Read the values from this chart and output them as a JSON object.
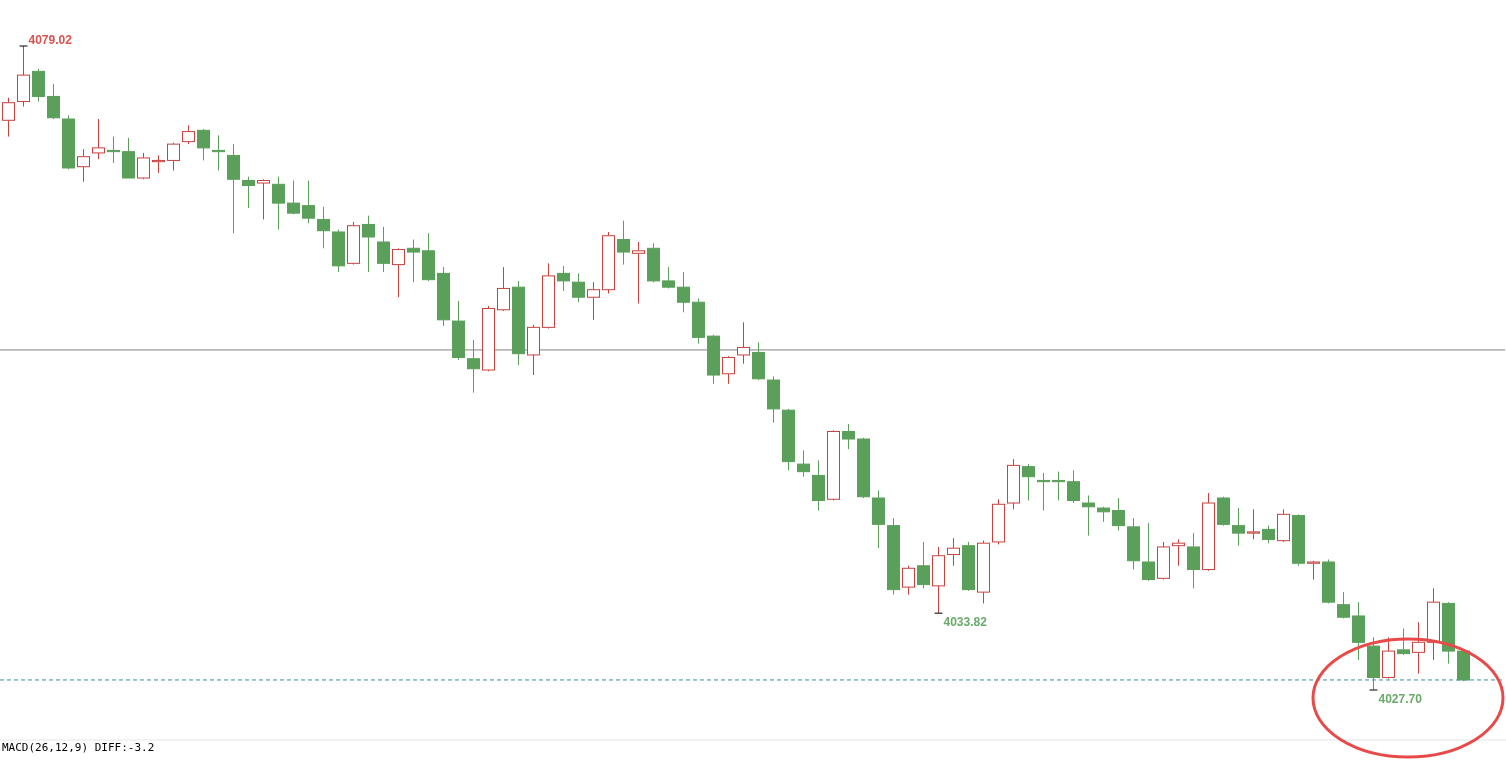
{
  "chart_data": {
    "type": "candlestick",
    "categories": [
      null,
      null,
      null,
      null,
      null,
      null,
      null,
      null,
      null,
      null,
      null,
      null,
      null,
      null,
      null,
      null,
      null,
      null,
      null,
      null,
      null,
      null,
      null,
      null,
      null,
      null,
      null,
      null,
      null,
      null,
      null,
      null,
      null,
      null,
      null,
      null,
      null,
      null,
      null,
      null,
      null,
      null,
      null,
      null,
      null,
      null,
      null,
      null,
      null,
      null,
      null,
      null,
      null,
      null,
      null,
      null,
      null,
      null,
      null,
      null,
      null,
      null,
      null,
      null,
      null,
      null,
      null,
      null,
      null,
      null,
      null,
      null,
      null,
      null,
      null,
      null,
      null,
      null,
      null,
      null,
      null,
      null,
      null,
      null,
      null,
      null,
      null,
      null,
      null,
      null,
      null,
      null,
      null,
      null,
      null,
      null,
      null,
      null
    ],
    "ohlc": [
      [
        4073.1,
        4074.9,
        4071.8,
        4074.5
      ],
      [
        4074.6,
        4079.02,
        4074.2,
        4076.7
      ],
      [
        4077.0,
        4077.2,
        4074.6,
        4075.0
      ],
      [
        4075.0,
        4076.0,
        4073.2,
        4073.3
      ],
      [
        4073.2,
        4073.5,
        4069.2,
        4069.3
      ],
      [
        4069.4,
        4070.8,
        4068.2,
        4070.2
      ],
      [
        4070.5,
        4073.2,
        4070.0,
        4070.9
      ],
      [
        4070.7,
        4071.8,
        4069.7,
        4070.6
      ],
      [
        4070.6,
        4071.7,
        4068.5,
        4068.5
      ],
      [
        4068.5,
        4070.5,
        4068.4,
        4070.1
      ],
      [
        4069.8,
        4070.3,
        4068.9,
        4069.9
      ],
      [
        4069.9,
        4071.3,
        4069.1,
        4071.2
      ],
      [
        4071.4,
        4072.7,
        4071.2,
        4072.2
      ],
      [
        4072.3,
        4072.4,
        4069.9,
        4070.9
      ],
      [
        4070.7,
        4071.9,
        4069.1,
        4070.6
      ],
      [
        4070.3,
        4071.2,
        4064.1,
        4068.4
      ],
      [
        4068.3,
        4068.6,
        4066.1,
        4067.9
      ],
      [
        4068.1,
        4068.4,
        4065.2,
        4068.3
      ],
      [
        4068.0,
        4068.6,
        4064.4,
        4066.5
      ],
      [
        4066.5,
        4068.3,
        4065.6,
        4065.7
      ],
      [
        4066.3,
        4068.3,
        4064.9,
        4065.3
      ],
      [
        4065.2,
        4066.2,
        4062.9,
        4064.3
      ],
      [
        4064.2,
        4064.4,
        4061.0,
        4061.5
      ],
      [
        4061.7,
        4065.0,
        4061.6,
        4064.7
      ],
      [
        4064.8,
        4065.5,
        4061.0,
        4063.8
      ],
      [
        4063.4,
        4064.6,
        4061.0,
        4061.7
      ],
      [
        4061.6,
        4062.9,
        4059.0,
        4062.8
      ],
      [
        4062.9,
        4063.6,
        4060.2,
        4062.6
      ],
      [
        4062.7,
        4064.1,
        4060.3,
        4060.4
      ],
      [
        4060.9,
        4061.4,
        4056.7,
        4057.2
      ],
      [
        4057.1,
        4058.7,
        4054.0,
        4054.2
      ],
      [
        4054.1,
        4055.6,
        4051.4,
        4053.3
      ],
      [
        4053.2,
        4058.3,
        4053.1,
        4058.1
      ],
      [
        4058.0,
        4061.4,
        4057.9,
        4059.7
      ],
      [
        4059.8,
        4060.3,
        4053.6,
        4054.5
      ],
      [
        4054.4,
        4056.8,
        4052.8,
        4056.6
      ],
      [
        4056.6,
        4061.7,
        4056.5,
        4060.7
      ],
      [
        4060.9,
        4061.5,
        4059.5,
        4060.3
      ],
      [
        4060.2,
        4060.9,
        4058.6,
        4059.0
      ],
      [
        4059.0,
        4060.2,
        4057.2,
        4059.6
      ],
      [
        4059.6,
        4064.2,
        4059.3,
        4063.9
      ],
      [
        4063.6,
        4065.1,
        4061.6,
        4062.6
      ],
      [
        4062.5,
        4063.4,
        4058.5,
        4062.7
      ],
      [
        4062.9,
        4063.3,
        4060.2,
        4060.3
      ],
      [
        4060.3,
        4061.4,
        4059.7,
        4059.8
      ],
      [
        4059.8,
        4061.0,
        4057.8,
        4058.6
      ],
      [
        4058.6,
        4058.9,
        4055.3,
        4055.8
      ],
      [
        4055.9,
        4056.0,
        4052.1,
        4052.8
      ],
      [
        4052.9,
        4054.3,
        4052.1,
        4054.2
      ],
      [
        4054.4,
        4057.0,
        4053.7,
        4055.0
      ],
      [
        4054.6,
        4055.4,
        4052.4,
        4052.5
      ],
      [
        4052.4,
        4052.7,
        4049.0,
        4050.1
      ],
      [
        4050.0,
        4050.1,
        4045.2,
        4045.9
      ],
      [
        4045.7,
        4046.8,
        4044.7,
        4045.1
      ],
      [
        4044.8,
        4046.0,
        4042.0,
        4042.8
      ],
      [
        4042.9,
        4048.4,
        4042.8,
        4048.3
      ],
      [
        4048.3,
        4048.9,
        4046.9,
        4047.7
      ],
      [
        4047.7,
        4047.8,
        4043.0,
        4043.1
      ],
      [
        4043.0,
        4043.6,
        4039.0,
        4040.9
      ],
      [
        4040.8,
        4041.4,
        4035.3,
        4035.7
      ],
      [
        4035.9,
        4037.6,
        4035.3,
        4037.4
      ],
      [
        4037.6,
        4039.5,
        4035.8,
        4036.1
      ],
      [
        4036.0,
        4039.1,
        4033.82,
        4038.4
      ],
      [
        4038.5,
        4039.8,
        4037.6,
        4039.0
      ],
      [
        4039.2,
        4039.5,
        4035.6,
        4035.7
      ],
      [
        4035.5,
        4039.6,
        4034.6,
        4039.4
      ],
      [
        4039.5,
        4042.9,
        4039.3,
        4042.5
      ],
      [
        4042.6,
        4046.1,
        4042.1,
        4045.6
      ],
      [
        4045.5,
        4045.7,
        4042.8,
        4044.7
      ],
      [
        4044.4,
        4045.0,
        4042.0,
        4044.3
      ],
      [
        4044.4,
        4045.1,
        4042.8,
        4044.3
      ],
      [
        4044.3,
        4045.2,
        4042.6,
        4042.8
      ],
      [
        4042.6,
        4043.2,
        4040.0,
        4042.3
      ],
      [
        4042.2,
        4042.3,
        4041.1,
        4041.9
      ],
      [
        4042.0,
        4043.0,
        4040.4,
        4040.8
      ],
      [
        4040.7,
        4041.4,
        4037.3,
        4038.0
      ],
      [
        4037.9,
        4041.0,
        4036.4,
        4036.5
      ],
      [
        4036.6,
        4039.5,
        4036.5,
        4039.1
      ],
      [
        4039.2,
        4039.7,
        4037.6,
        4039.4
      ],
      [
        4039.1,
        4040.2,
        4035.8,
        4037.3
      ],
      [
        4037.3,
        4043.4,
        4037.2,
        4042.6
      ],
      [
        4043.0,
        4043.1,
        4040.8,
        4040.9
      ],
      [
        4040.8,
        4042.2,
        4039.2,
        4040.2
      ],
      [
        4040.2,
        4042.1,
        4039.7,
        4040.3
      ],
      [
        4040.5,
        4040.8,
        4039.4,
        4039.7
      ],
      [
        4039.6,
        4042.1,
        4039.5,
        4041.7
      ],
      [
        4041.6,
        4041.7,
        4037.6,
        4037.8
      ],
      [
        4037.8,
        4038.0,
        4036.5,
        4037.9
      ],
      [
        4037.9,
        4038.1,
        4034.6,
        4034.7
      ],
      [
        4034.5,
        4035.5,
        4033.4,
        4033.5
      ],
      [
        4033.6,
        4034.7,
        4030.1,
        4031.5
      ],
      [
        4031.2,
        4031.9,
        4027.7,
        4028.7
      ],
      [
        4028.7,
        4031.9,
        4028.6,
        4030.8
      ],
      [
        4030.9,
        4032.6,
        4030.5,
        4030.6
      ],
      [
        4030.7,
        4033.1,
        4029.0,
        4031.5
      ],
      [
        4031.5,
        4035.8,
        4030.1,
        4034.7
      ],
      [
        4034.6,
        4034.7,
        4029.8,
        4030.8
      ],
      [
        4030.8,
        4030.9,
        4028.4,
        4028.5
      ]
    ],
    "colors": [
      "#c8423f",
      "#c8423f",
      "#5a9f5a",
      "#5a9f5a",
      "#5a9f5a",
      "#c8423f",
      "#c8423f",
      "#5a9f5a",
      "#5a9f5a",
      "#c8423f",
      "#c8423f",
      "#c8423f",
      "#c8423f",
      "#5a9f5a",
      "#5a9f5a",
      "#5a9f5a",
      "#5a9f5a",
      "#c8423f",
      "#5a9f5a",
      "#5a9f5a",
      "#5a9f5a",
      "#5a9f5a",
      "#5a9f5a",
      "#c8423f",
      "#5a9f5a",
      "#5a9f5a",
      "#c8423f",
      "#5a9f5a",
      "#5a9f5a",
      "#5a9f5a",
      "#5a9f5a",
      "#5a9f5a",
      "#c8423f",
      "#c8423f",
      "#5a9f5a",
      "#c8423f",
      "#c8423f",
      "#5a9f5a",
      "#5a9f5a",
      "#c8423f",
      "#c8423f",
      "#5a9f5a",
      "#c8423f",
      "#5a9f5a",
      "#5a9f5a",
      "#5a9f5a",
      "#5a9f5a",
      "#5a9f5a",
      "#c8423f",
      "#c8423f",
      "#5a9f5a",
      "#5a9f5a",
      "#5a9f5a",
      "#5a9f5a",
      "#5a9f5a",
      "#c8423f",
      "#5a9f5a",
      "#5a9f5a",
      "#5a9f5a",
      "#5a9f5a",
      "#c8423f",
      "#5a9f5a",
      "#c8423f",
      "#c8423f",
      "#5a9f5a",
      "#c8423f",
      "#c8423f",
      "#c8423f",
      "#5a9f5a",
      "#5a9f5a",
      "#5a9f5a",
      "#5a9f5a",
      "#5a9f5a",
      "#5a9f5a",
      "#5a9f5a",
      "#5a9f5a",
      "#5a9f5a",
      "#c8423f",
      "#c8423f",
      "#5a9f5a",
      "#c8423f",
      "#5a9f5a",
      "#5a9f5a",
      "#c8423f",
      "#5a9f5a",
      "#c8423f",
      "#5a9f5a",
      "#c8423f",
      "#5a9f5a",
      "#5a9f5a",
      "#5a9f5a",
      "#5a9f5a",
      "#c8423f",
      "#5a9f5a",
      "#c8423f",
      "#c8423f",
      "#5a9f5a",
      "#5a9f5a"
    ],
    "ref_lines": [
      {
        "axis": "y",
        "value": 4054.8,
        "color": "#808080",
        "line_style": "solid"
      },
      {
        "axis": "y",
        "value": 4028.5,
        "color": "#3b8ea5",
        "line_style": "dashed"
      }
    ],
    "annotations": [
      "4079.02",
      "4033.82",
      "4027.70",
      "MACD(26,12,9) DIFF:-3.2"
    ]
  }
}
